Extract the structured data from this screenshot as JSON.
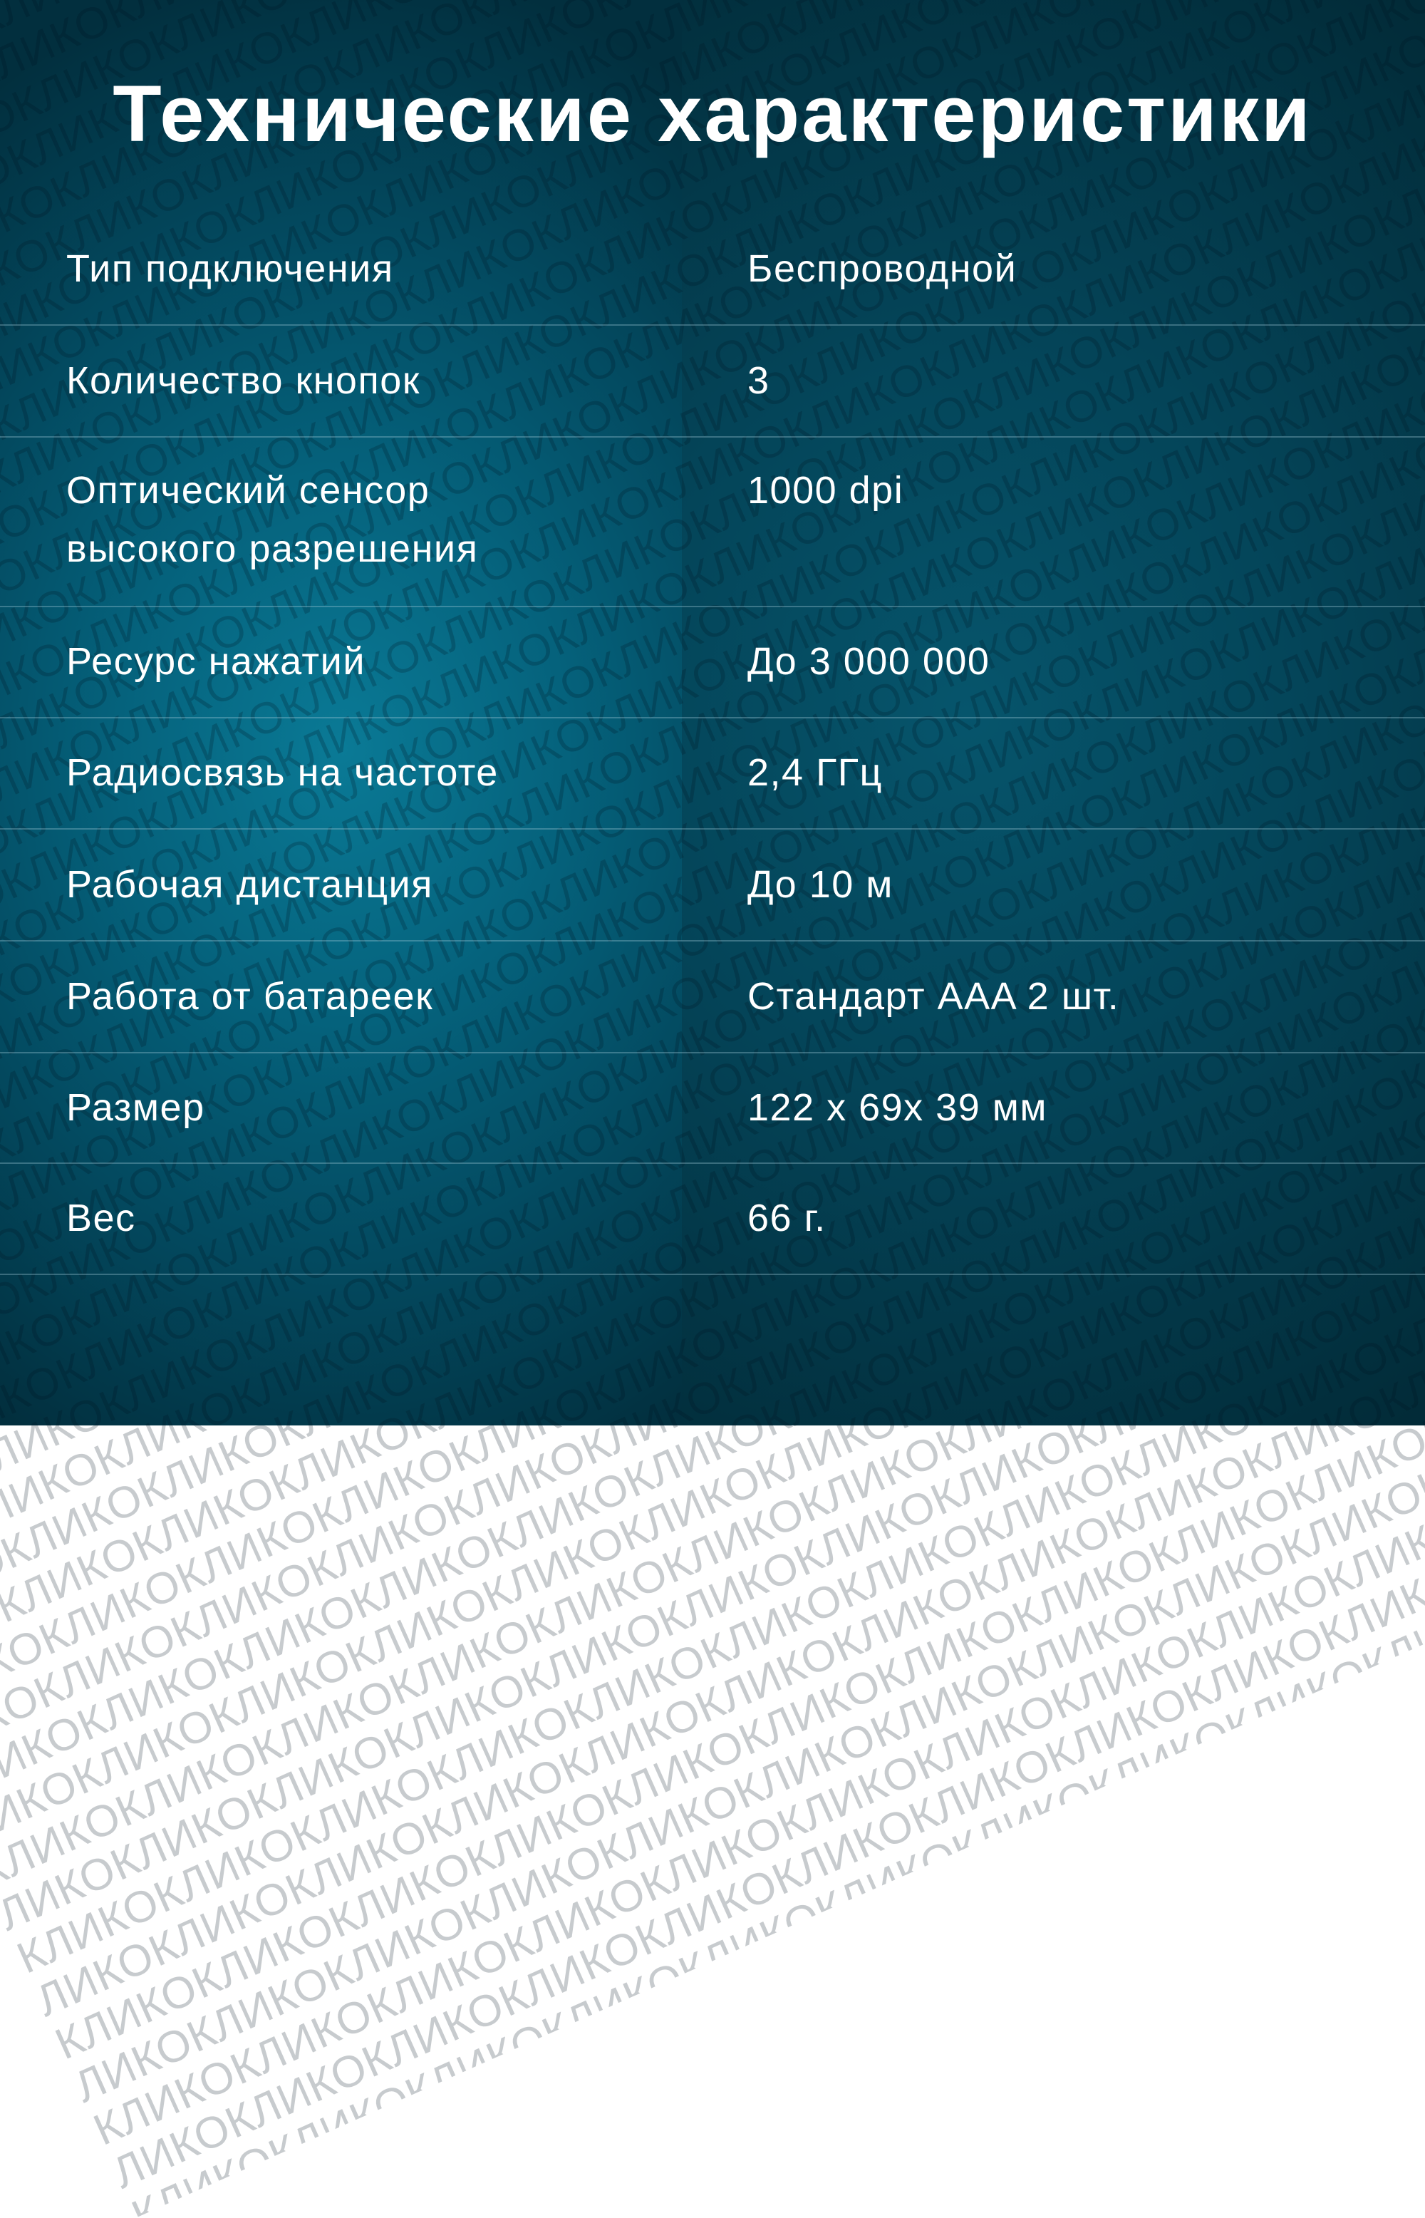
{
  "title": "Технические характеристики",
  "watermark": "КЛИКО",
  "colors": {
    "left_panel": "#05627c",
    "right_panel": "#044458",
    "text": "#ffffff"
  },
  "specs": [
    {
      "label": "Тип подключения",
      "value": "Беспроводной"
    },
    {
      "label": "Количество кнопок",
      "value": "3"
    },
    {
      "label": "Оптический сенсор высокого разрешения",
      "value": "1000 dpi"
    },
    {
      "label": "Ресурс нажатий",
      "value": "До 3 000 000"
    },
    {
      "label": "Радиосвязь на частоте",
      "value": "2,4 ГГц"
    },
    {
      "label": "Рабочая дистанция",
      "value": "До 10 м"
    },
    {
      "label": "Работа от батареек",
      "value": "Стандарт AAA 2 шт."
    },
    {
      "label": "Размер",
      "value": "122 x 69x 39 мм"
    },
    {
      "label": "Вес",
      "value": "66 г."
    }
  ]
}
